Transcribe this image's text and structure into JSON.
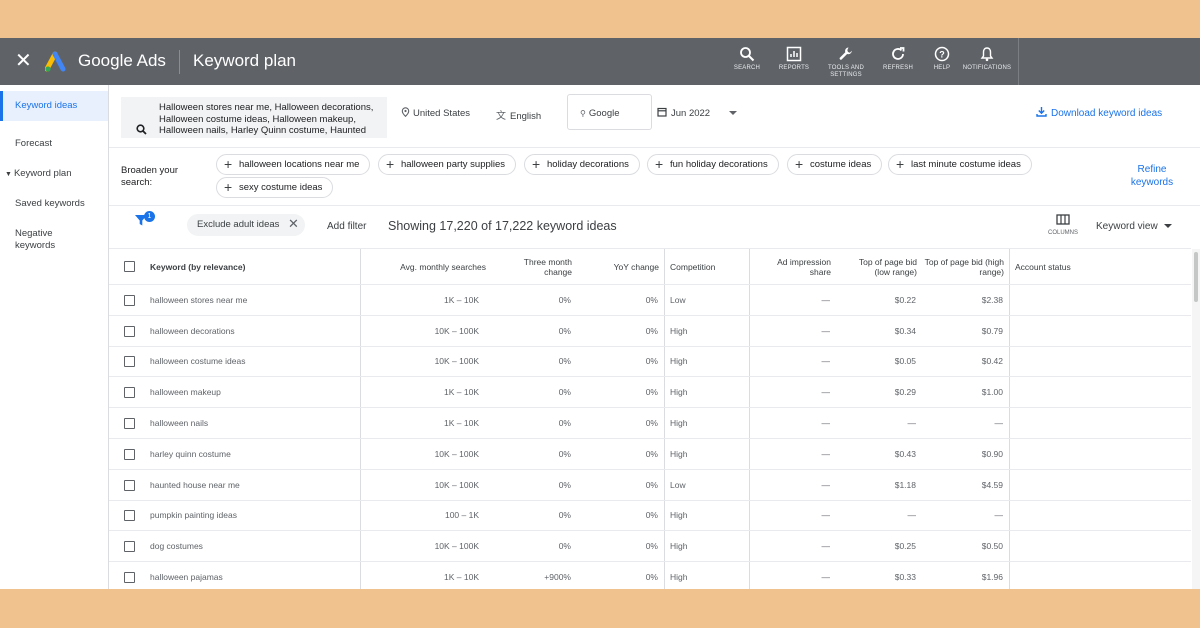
{
  "app": {
    "brand": "Google Ads",
    "page_title": "Keyword plan",
    "nav": [
      {
        "label": "SEARCH",
        "icon": "search-icon"
      },
      {
        "label": "REPORTS",
        "icon": "reports-icon"
      },
      {
        "label": "TOOLS AND SETTINGS",
        "icon": "wrench-icon"
      },
      {
        "label": "REFRESH",
        "icon": "refresh-icon"
      },
      {
        "label": "HELP",
        "icon": "help-icon"
      },
      {
        "label": "NOTIFICATIONS",
        "icon": "bell-icon"
      }
    ]
  },
  "sidebar": {
    "items": [
      "Keyword ideas",
      "Forecast",
      "Keyword plan",
      "Saved keywords",
      "Negative keywords"
    ]
  },
  "search": {
    "query": "Halloween stores near me, Halloween decorations, Halloween costume ideas, Halloween makeup, Halloween nails, Harley Quinn costume, Haunted",
    "location": "United States",
    "language": "English",
    "network": "Google",
    "date": "Jun 2022",
    "download": "Download keyword ideas"
  },
  "broaden": {
    "label": "Broaden your search:",
    "chips": [
      "halloween locations near me",
      "halloween party supplies",
      "holiday decorations",
      "fun holiday decorations",
      "costume ideas",
      "last minute costume ideas",
      "sexy costume ideas"
    ],
    "refine": "Refine keywords"
  },
  "filters": {
    "badge": "1",
    "active_filter": "Exclude adult ideas",
    "add_filter": "Add filter",
    "showing": "Showing 17,220 of 17,222 keyword ideas",
    "columns": "COLUMNS",
    "view": "Keyword view"
  },
  "table": {
    "headers": {
      "keyword": "Keyword (by relevance)",
      "avg": "Avg. monthly searches",
      "three": "Three month change",
      "yoy": "YoY change",
      "comp": "Competition",
      "imp": "Ad impression share",
      "low": "Top of page bid (low range)",
      "high": "Top of page bid (high range)",
      "status": "Account status"
    },
    "rows": [
      {
        "keyword": "halloween stores near me",
        "avg": "1K – 10K",
        "three": "0%",
        "yoy": "0%",
        "comp": "Low",
        "imp": "—",
        "low": "$0.22",
        "high": "$2.38"
      },
      {
        "keyword": "halloween decorations",
        "avg": "10K – 100K",
        "three": "0%",
        "yoy": "0%",
        "comp": "High",
        "imp": "—",
        "low": "$0.34",
        "high": "$0.79"
      },
      {
        "keyword": "halloween costume ideas",
        "avg": "10K – 100K",
        "three": "0%",
        "yoy": "0%",
        "comp": "High",
        "imp": "—",
        "low": "$0.05",
        "high": "$0.42"
      },
      {
        "keyword": "halloween makeup",
        "avg": "1K – 10K",
        "three": "0%",
        "yoy": "0%",
        "comp": "High",
        "imp": "—",
        "low": "$0.29",
        "high": "$1.00"
      },
      {
        "keyword": "halloween nails",
        "avg": "1K – 10K",
        "three": "0%",
        "yoy": "0%",
        "comp": "High",
        "imp": "—",
        "low": "—",
        "high": "—"
      },
      {
        "keyword": "harley quinn costume",
        "avg": "10K – 100K",
        "three": "0%",
        "yoy": "0%",
        "comp": "High",
        "imp": "—",
        "low": "$0.43",
        "high": "$0.90"
      },
      {
        "keyword": "haunted house near me",
        "avg": "10K – 100K",
        "three": "0%",
        "yoy": "0%",
        "comp": "Low",
        "imp": "—",
        "low": "$1.18",
        "high": "$4.59"
      },
      {
        "keyword": "pumpkin painting ideas",
        "avg": "100 – 1K",
        "three": "0%",
        "yoy": "0%",
        "comp": "High",
        "imp": "—",
        "low": "—",
        "high": "—"
      },
      {
        "keyword": "dog costumes",
        "avg": "10K – 100K",
        "three": "0%",
        "yoy": "0%",
        "comp": "High",
        "imp": "—",
        "low": "$0.25",
        "high": "$0.50"
      },
      {
        "keyword": "halloween pajamas",
        "avg": "1K – 10K",
        "three": "+900%",
        "yoy": "0%",
        "comp": "High",
        "imp": "—",
        "low": "$0.33",
        "high": "$1.96"
      }
    ]
  },
  "colors": {
    "topbar": "#5f6368",
    "accent": "#1a73e8",
    "background_band": "#f0c28e"
  }
}
